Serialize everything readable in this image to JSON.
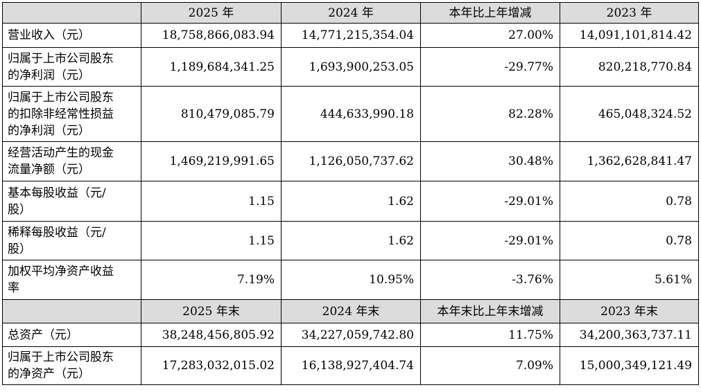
{
  "header1": [
    "",
    "2025 年",
    "2024 年",
    "本年比上年增减",
    "2023 年"
  ],
  "rows1": [
    {
      "label": "营业收入（元）",
      "v2025": "18,758,866,083.94",
      "v2024": "14,771,215,354.04",
      "change": "27.00%",
      "v2023": "14,091,101,814.42"
    },
    {
      "label": "归属于上市公司股东\n的净利润（元）",
      "v2025": "1,189,684,341.25",
      "v2024": "1,693,900,253.05",
      "change": "-29.77%",
      "v2023": "820,218,770.84"
    },
    {
      "label": "归属于上市公司股东\n的扣除非经常性损益\n的净利润（元）",
      "v2025": "810,479,085.79",
      "v2024": "444,633,990.18",
      "change": "82.28%",
      "v2023": "465,048,324.52"
    },
    {
      "label": "经营活动产生的现金\n流量净额（元）",
      "v2025": "1,469,219,991.65",
      "v2024": "1,126,050,737.62",
      "change": "30.48%",
      "v2023": "1,362,628,841.47"
    },
    {
      "label": "基本每股收益（元/\n股）",
      "v2025": "1.15",
      "v2024": "1.62",
      "change": "-29.01%",
      "v2023": "0.78"
    },
    {
      "label": "稀释每股收益（元/\n股）",
      "v2025": "1.15",
      "v2024": "1.62",
      "change": "-29.01%",
      "v2023": "0.78"
    },
    {
      "label": "加权平均净资产收益\n率",
      "v2025": "7.19%",
      "v2024": "10.95%",
      "change": "-3.76%",
      "v2023": "5.61%"
    }
  ],
  "header2": [
    "",
    "2025 年末",
    "2024 年末",
    "本年末比上年末增减",
    "2023 年末"
  ],
  "rows2": [
    {
      "label": "总资产（元）",
      "v2025": "38,248,456,805.92",
      "v2024": "34,227,059,742.80",
      "change": "11.75%",
      "v2023": "34,200,363,737.11"
    },
    {
      "label": "归属于上市公司股东\n的净资产（元）",
      "v2025": "17,283,032,015.02",
      "v2024": "16,138,927,404.74",
      "change": "7.09%",
      "v2023": "15,000,349,121.49"
    }
  ]
}
